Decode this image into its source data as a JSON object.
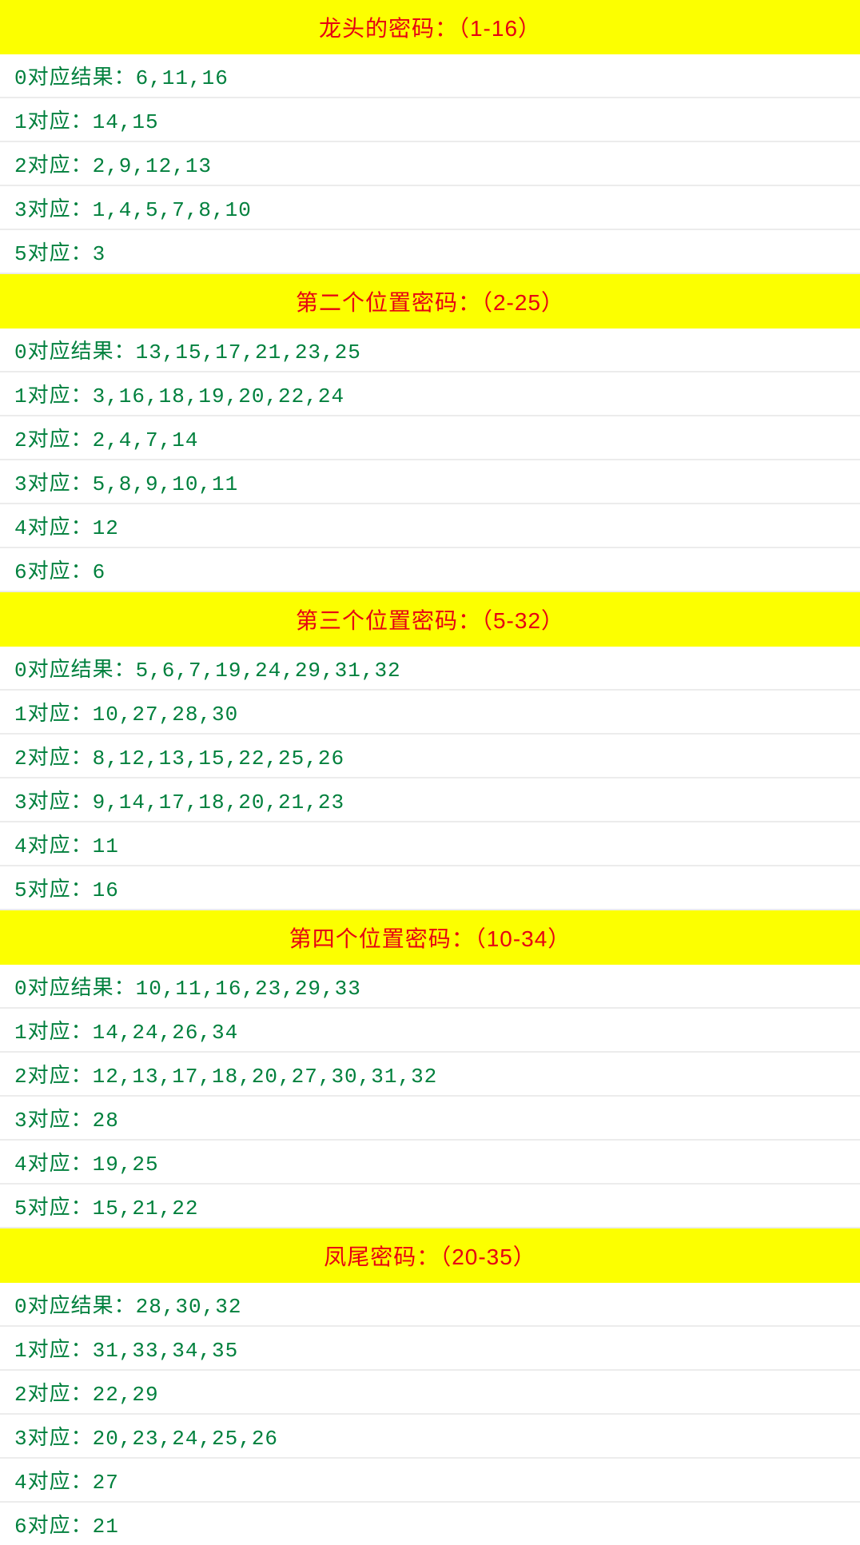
{
  "colors": {
    "header_bg": "#fcff00",
    "header_text": "#e60012",
    "row_bg": "#ffffff",
    "row_text": "#00803d",
    "row_border": "#ececec",
    "page_bg": "#f5f5f5"
  },
  "typography": {
    "header_fontsize": 28,
    "row_fontsize": 26,
    "font_family": "Microsoft YaHei"
  },
  "sections": [
    {
      "title": "龙头的密码：（1-16）",
      "rows": [
        "0对应结果：6,11,16",
        "1对应：14,15",
        "2对应：2,9,12,13",
        "3对应：1,4,5,7,8,10",
        "5对应：3"
      ]
    },
    {
      "title": "第二个位置密码：（2-25）",
      "rows": [
        "0对应结果：13,15,17,21,23,25",
        "1对应：3,16,18,19,20,22,24",
        "2对应：2,4,7,14",
        "3对应：5,8,9,10,11",
        "4对应：12",
        "6对应：6"
      ]
    },
    {
      "title": "第三个位置密码：（5-32）",
      "rows": [
        "0对应结果：5,6,7,19,24,29,31,32",
        "1对应：10,27,28,30",
        "2对应：8,12,13,15,22,25,26",
        "3对应：9,14,17,18,20,21,23",
        "4对应：11",
        "5对应：16"
      ]
    },
    {
      "title": "第四个位置密码：（10-34）",
      "rows": [
        "0对应结果：10,11,16,23,29,33",
        "1对应：14,24,26,34",
        "2对应：12,13,17,18,20,27,30,31,32",
        "3对应：28",
        "4对应：19,25",
        "5对应：15,21,22"
      ]
    },
    {
      "title": "凤尾密码：（20-35）",
      "rows": [
        "0对应结果：28,30,32",
        "1对应：31,33,34,35",
        "2对应：22,29",
        "3对应：20,23,24,25,26",
        "4对应：27",
        "6对应：21"
      ]
    }
  ]
}
